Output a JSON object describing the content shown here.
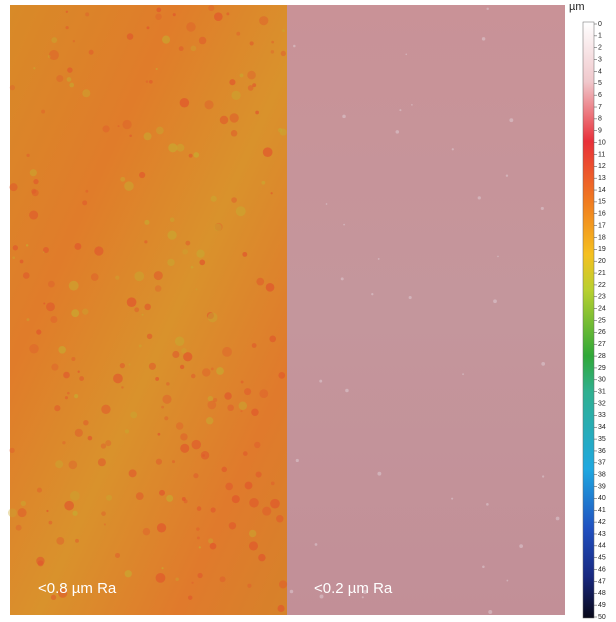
{
  "panels": [
    {
      "label": "<0.8 µm Ra"
    },
    {
      "label": "<0.2 µm Ra"
    }
  ],
  "colorbar": {
    "unit": "µm",
    "range": [
      0,
      50
    ],
    "ticks": [
      0,
      1,
      2,
      3,
      4,
      5,
      6,
      7,
      8,
      9,
      10,
      11,
      12,
      13,
      14,
      15,
      16,
      17,
      18,
      19,
      20,
      21,
      22,
      23,
      24,
      25,
      26,
      27,
      28,
      29,
      30,
      31,
      32,
      33,
      34,
      35,
      36,
      37,
      38,
      39,
      40,
      41,
      42,
      43,
      44,
      45,
      46,
      47,
      48,
      49,
      50
    ]
  }
}
